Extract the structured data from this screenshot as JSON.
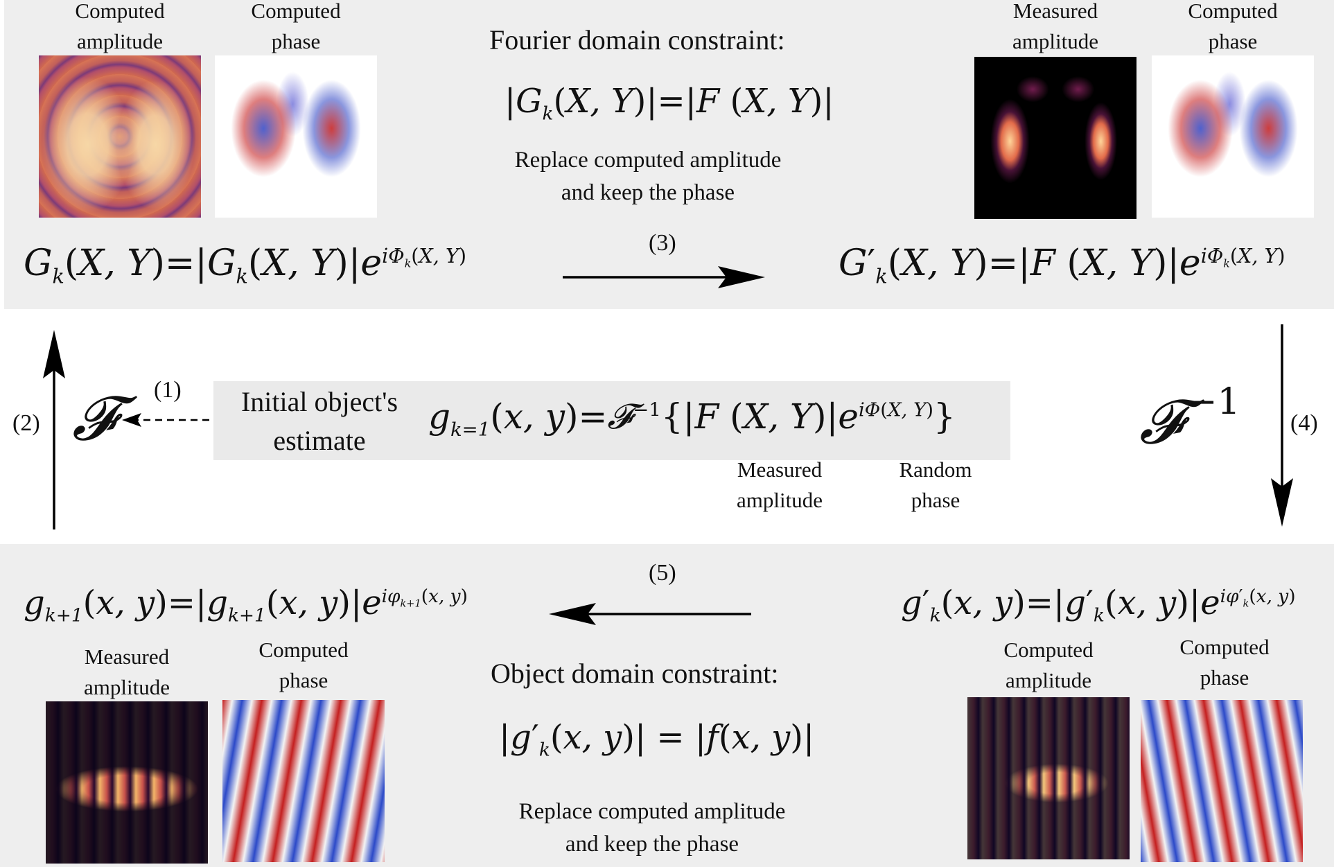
{
  "colors": {
    "panel": "#eeeeee",
    "initial_box": "#eaeaea",
    "arrow": "#000000"
  },
  "top_panel": {
    "left_images": {
      "amplitude_label": [
        "Computed",
        "amplitude"
      ],
      "phase_label": [
        "Computed",
        "phase"
      ]
    },
    "right_images": {
      "amplitude_label": [
        "Measured",
        "amplitude"
      ],
      "phase_label": [
        "Computed",
        "phase"
      ]
    },
    "constraint_title": "Fourier domain constraint:",
    "constraint_equation": "|G_k(X,Y)| = |F(X,Y)|",
    "constraint_note": [
      "Replace computed amplitude",
      "and keep the phase"
    ],
    "left_equation": "G_k(X,Y) = |G_k(X,Y)| e^{iΦ_k(X,Y)}",
    "right_equation": "G'_k(X,Y) = |F(X,Y)| e^{iΦ_k(X,Y)}",
    "step_label": "(3)"
  },
  "middle": {
    "step1_label": "(1)",
    "step2_label": "(2)",
    "step4_label": "(4)",
    "fourier_symbol": "𝓕",
    "inverse_fourier_symbol": "𝓕",
    "inverse_exponent": "−1",
    "initial_label": [
      "Initial object's",
      "estimate"
    ],
    "initial_equation": "g_{k=1}(x,y) = 𝓕^{−1}{ |F(X,Y)| e^{iΦ(X,Y)} }",
    "measured_label": [
      "Measured",
      "amplitude"
    ],
    "random_label": [
      "Random",
      "phase"
    ]
  },
  "bottom_panel": {
    "step_label": "(5)",
    "left_equation": "g_{k+1}(x,y) = |g_{k+1}(x,y)| e^{iφ_{k+1}(x,y)}",
    "right_equation": "g'_k(x,y) = |g'_k(x,y)| e^{iφ'_k(x,y)}",
    "left_images": {
      "amplitude_label": [
        "Measured",
        "amplitude"
      ],
      "phase_label": [
        "Computed",
        "phase"
      ]
    },
    "right_images": {
      "amplitude_label": [
        "Computed",
        "amplitude"
      ],
      "phase_label": [
        "Computed",
        "phase"
      ]
    },
    "constraint_title": "Object domain constraint:",
    "constraint_equation": "|g'_k(x,y)| = |f(x,y)|",
    "constraint_note": [
      "Replace computed amplitude",
      "and keep the phase"
    ]
  }
}
